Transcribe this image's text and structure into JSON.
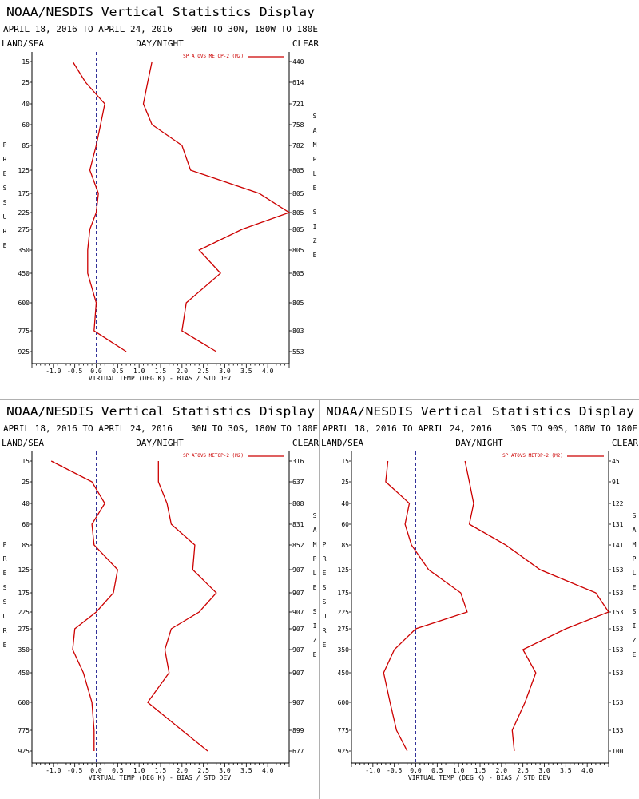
{
  "chart_data": [
    {
      "type": "line",
      "title": "NOAA/NESDIS Vertical Statistics Display",
      "date_range": "APRIL 18, 2016 TO APRIL 24, 2016",
      "region": "90N TO 30N, 180W TO 180E",
      "left_label": "LAND/SEA",
      "center_label": "DAY/NIGHT",
      "right_label": "CLEAR",
      "ylabel": "PRESSURE",
      "y2label": "SAMPLE SIZE",
      "xlabel": "VIRTUAL TEMP (DEG K) - BIAS / STD DEV",
      "legend": "SP ATOVS METOP-2 (M2)",
      "xlim": [
        -1.5,
        4.5
      ],
      "xticks": [
        "-1.0",
        "-0.5",
        "0.0",
        "0.5",
        "1.0",
        "1.5",
        "2.0",
        "2.5",
        "3.0",
        "3.5",
        "4.0"
      ],
      "pressure_levels": [
        "15",
        "25",
        "40",
        "60",
        "85",
        "125",
        "175",
        "225",
        "275",
        "350",
        "450",
        "600",
        "775",
        "925"
      ],
      "sample_sizes": [
        "440",
        "614",
        "721",
        "758",
        "782",
        "805",
        "805",
        "805",
        "805",
        "805",
        "805",
        "805",
        "803",
        "553"
      ],
      "series": [
        {
          "values": [
            -0.55,
            -0.25,
            0.2,
            0.1,
            0.0,
            -0.15,
            0.05,
            0.0,
            -0.15,
            -0.2,
            -0.2,
            0.0,
            -0.05,
            0.7
          ]
        },
        {
          "values": [
            1.3,
            1.2,
            1.1,
            1.3,
            2.0,
            2.2,
            3.8,
            4.5,
            3.4,
            2.4,
            2.9,
            2.1,
            2.0,
            2.8
          ]
        }
      ]
    },
    {
      "type": "line",
      "title": "NOAA/NESDIS Vertical Statistics Display",
      "date_range": "APRIL 18, 2016 TO APRIL 24, 2016",
      "region": "30N TO 30S, 180W TO 180E",
      "left_label": "LAND/SEA",
      "center_label": "DAY/NIGHT",
      "right_label": "CLEAR",
      "ylabel": "PRESSURE",
      "y2label": "SAMPLE SIZE",
      "xlabel": "VIRTUAL TEMP (DEG K) - BIAS / STD DEV",
      "legend": "SP ATOVS METOP-2 (M2)",
      "xlim": [
        -1.5,
        4.5
      ],
      "xticks": [
        "-1.0",
        "-0.5",
        "0.0",
        "0.5",
        "1.0",
        "1.5",
        "2.0",
        "2.5",
        "3.0",
        "3.5",
        "4.0"
      ],
      "pressure_levels": [
        "15",
        "25",
        "40",
        "60",
        "85",
        "125",
        "175",
        "225",
        "275",
        "350",
        "450",
        "600",
        "775",
        "925"
      ],
      "sample_sizes": [
        "316",
        "637",
        "808",
        "831",
        "852",
        "907",
        "907",
        "907",
        "907",
        "907",
        "907",
        "907",
        "899",
        "677"
      ],
      "series": [
        {
          "values": [
            -1.05,
            -0.1,
            0.2,
            -0.1,
            -0.05,
            0.5,
            0.4,
            0.0,
            -0.5,
            -0.55,
            -0.3,
            -0.1,
            -0.05,
            -0.05
          ]
        },
        {
          "values": [
            1.45,
            1.45,
            1.65,
            1.75,
            2.3,
            2.25,
            2.8,
            2.4,
            1.75,
            1.6,
            1.7,
            1.2,
            2.0,
            2.6
          ]
        }
      ]
    },
    {
      "type": "line",
      "title": "NOAA/NESDIS Vertical Statistics Display",
      "date_range": "APRIL 18, 2016 TO APRIL 24, 2016",
      "region": "30S TO 90S, 180W TO 180E",
      "left_label": "LAND/SEA",
      "center_label": "DAY/NIGHT",
      "right_label": "CLEAR",
      "ylabel": "PRESSURE",
      "y2label": "SAMPLE SIZE",
      "xlabel": "VIRTUAL TEMP (DEG K) - BIAS / STD DEV",
      "legend": "SP ATOVS METOP-2 (M2)",
      "xlim": [
        -1.5,
        4.5
      ],
      "xticks": [
        "-1.0",
        "-0.5",
        "0.0",
        "0.5",
        "1.0",
        "1.5",
        "2.0",
        "2.5",
        "3.0",
        "3.5",
        "4.0"
      ],
      "pressure_levels": [
        "15",
        "25",
        "40",
        "60",
        "85",
        "125",
        "175",
        "225",
        "275",
        "350",
        "450",
        "600",
        "775",
        "925"
      ],
      "sample_sizes": [
        "45",
        "91",
        "122",
        "131",
        "141",
        "153",
        "153",
        "153",
        "153",
        "153",
        "153",
        "153",
        "153",
        "100"
      ],
      "series": [
        {
          "values": [
            -0.65,
            -0.7,
            -0.15,
            -0.25,
            -0.1,
            0.3,
            1.05,
            1.2,
            0.0,
            -0.5,
            -0.75,
            -0.6,
            -0.45,
            -0.2
          ]
        },
        {
          "values": [
            1.15,
            1.25,
            1.35,
            1.25,
            2.1,
            2.9,
            4.2,
            4.55,
            3.5,
            2.5,
            2.8,
            2.55,
            2.25,
            2.3
          ]
        }
      ]
    }
  ],
  "colors": {
    "line": "#cc0000",
    "zero_line": "#000080",
    "text": "#000000",
    "axis": "#000000",
    "divider": "#b0b0b0"
  }
}
